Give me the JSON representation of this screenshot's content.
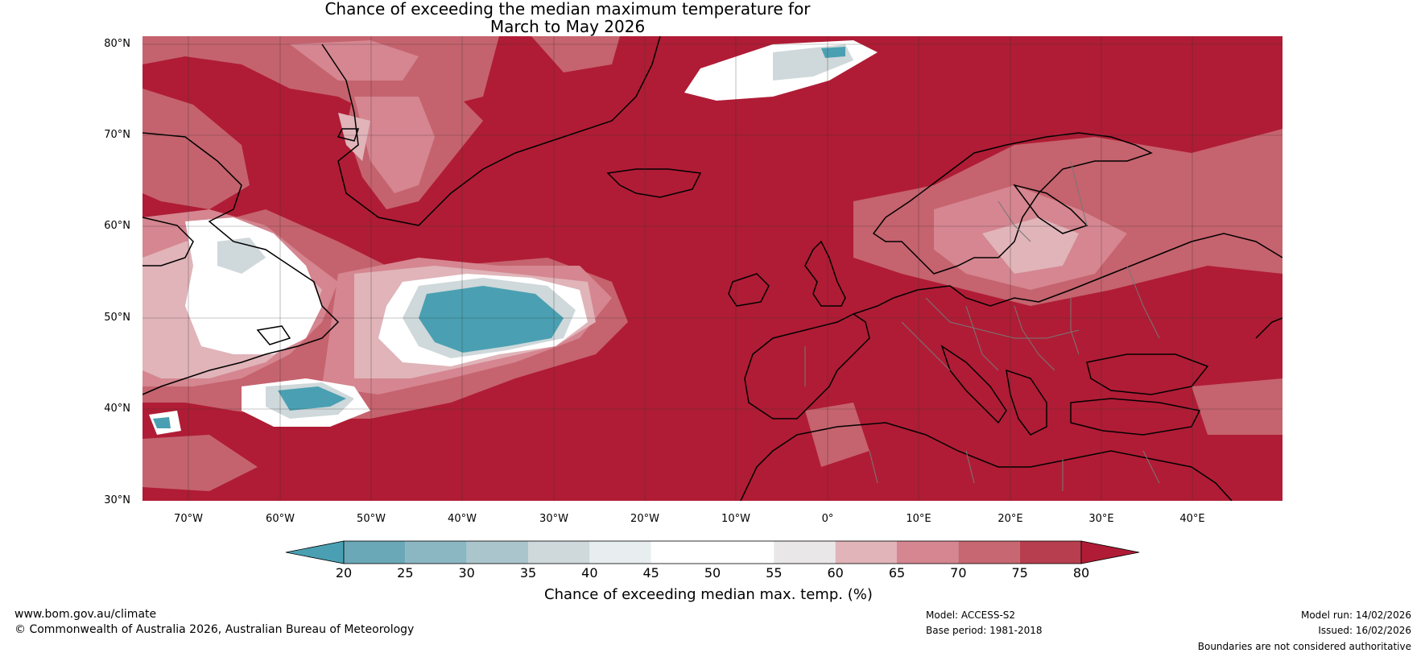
{
  "title_line1": "Chance of exceeding the median maximum temperature for",
  "title_line2": "March to May 2026",
  "lat_labels": [
    "80°N",
    "70°N",
    "60°N",
    "50°N",
    "40°N",
    "30°N"
  ],
  "lon_labels": [
    "70°W",
    "60°W",
    "50°W",
    "40°W",
    "30°W",
    "20°W",
    "10°W",
    "0°",
    "10°E",
    "20°E",
    "30°E",
    "40°E"
  ],
  "colorbar": {
    "ticks": [
      "20",
      "25",
      "30",
      "35",
      "40",
      "45",
      "50",
      "55",
      "60",
      "65",
      "70",
      "75",
      "80"
    ],
    "colors": [
      "#4aa0b2",
      "#6aa8b8",
      "#8bb7c3",
      "#abc5cc",
      "#cfd8da",
      "#e8eeef",
      "#ffffff",
      "#ffffff",
      "#e9e7e8",
      "#e0b4b9",
      "#d58690",
      "#c66772",
      "#b73e4e",
      "#b01c35"
    ],
    "label": "Chance of exceeding median max. temp. (%)"
  },
  "footer": {
    "website": "www.bom.gov.au/climate",
    "copyright": "© Commonwealth of Australia 2026, Australian Bureau of Meteorology",
    "model": "Model: ACCESS-S2",
    "base_period": "Base period: 1981-2018",
    "model_run": "Model run: 14/02/2026",
    "issued": "Issued: 16/02/2026",
    "disclaimer": "Boundaries are not considered authoritative"
  },
  "colors": {
    "high": "#b01c35",
    "low": "#4aa0b2",
    "coast": "#000000",
    "border": "#777777",
    "grid": "#333333"
  }
}
